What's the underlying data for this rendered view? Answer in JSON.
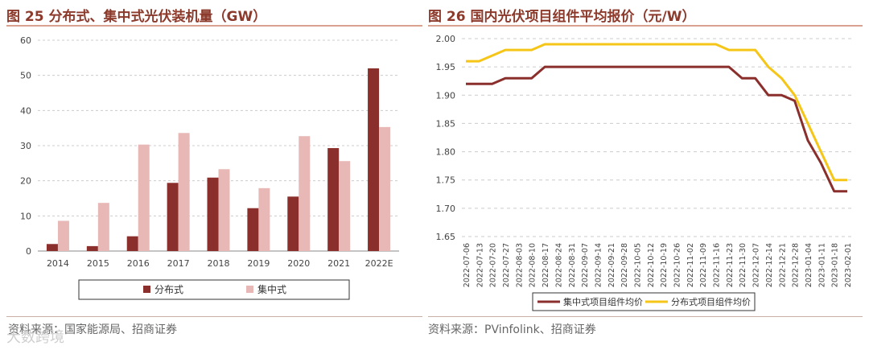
{
  "left_panel": {
    "title": "图 25 分布式、集中式光伏装机量（GW）",
    "source": "资料来源：国家能源局、招商证券"
  },
  "right_panel": {
    "title": "图 26 国内光伏项目组件平均报价（元/W）",
    "source": "资料来源：PVinfolink、招商证券"
  },
  "watermark": "大数跨境",
  "colors": {
    "dark_red": "#8b2f2c",
    "pink": "#e8b8b6",
    "yellow": "#f5c518",
    "title": "#8c3a2b"
  },
  "chart_data": [
    {
      "type": "bar",
      "title": "分布式、集中式光伏装机量（GW）",
      "categories": [
        "2014",
        "2015",
        "2016",
        "2017",
        "2018",
        "2019",
        "2020",
        "2021",
        "2022E"
      ],
      "series": [
        {
          "name": "分布式",
          "values": [
            2.0,
            1.4,
            4.2,
            19.4,
            20.9,
            12.2,
            15.5,
            29.3,
            52.0
          ]
        },
        {
          "name": "集中式",
          "values": [
            8.6,
            13.7,
            30.3,
            33.6,
            23.3,
            17.9,
            32.7,
            25.6,
            35.3
          ]
        }
      ],
      "yticks": [
        "0",
        "10",
        "20",
        "30",
        "40",
        "50",
        "60"
      ],
      "ylim": [
        0,
        60
      ],
      "legend_position": "bottom"
    },
    {
      "type": "line",
      "title": "国内光伏项目组件平均报价（元/W）",
      "x": [
        "2022-07-06",
        "2022-07-13",
        "2022-07-20",
        "2022-07-27",
        "2022-08-03",
        "2022-08-10",
        "2022-08-17",
        "2022-08-24",
        "2022-08-31",
        "2022-09-07",
        "2022-09-14",
        "2022-09-21",
        "2022-09-28",
        "2022-10-05",
        "2022-10-12",
        "2022-10-19",
        "2022-10-26",
        "2022-11-02",
        "2022-11-09",
        "2022-11-16",
        "2022-11-23",
        "2022-11-30",
        "2022-12-07",
        "2022-12-14",
        "2022-12-21",
        "2022-12-28",
        "2023-01-04",
        "2023-01-11",
        "2023-01-18",
        "2023-02-01"
      ],
      "series": [
        {
          "name": "集中式项目组件均价",
          "values": [
            1.92,
            1.92,
            1.92,
            1.93,
            1.93,
            1.93,
            1.95,
            1.95,
            1.95,
            1.95,
            1.95,
            1.95,
            1.95,
            1.95,
            1.95,
            1.95,
            1.95,
            1.95,
            1.95,
            1.95,
            1.95,
            1.93,
            1.93,
            1.9,
            1.9,
            1.89,
            1.82,
            1.78,
            1.73,
            1.73
          ]
        },
        {
          "name": "分布式项目组件均价",
          "values": [
            1.96,
            1.96,
            1.97,
            1.98,
            1.98,
            1.98,
            1.99,
            1.99,
            1.99,
            1.99,
            1.99,
            1.99,
            1.99,
            1.99,
            1.99,
            1.99,
            1.99,
            1.99,
            1.99,
            1.99,
            1.98,
            1.98,
            1.98,
            1.95,
            1.93,
            1.9,
            1.85,
            1.8,
            1.75,
            1.75
          ]
        }
      ],
      "yticks": [
        "1.65",
        "1.70",
        "1.75",
        "1.80",
        "1.85",
        "1.90",
        "1.95",
        "2.00"
      ],
      "ylim": [
        1.65,
        2.0
      ],
      "legend_position": "bottom"
    }
  ]
}
